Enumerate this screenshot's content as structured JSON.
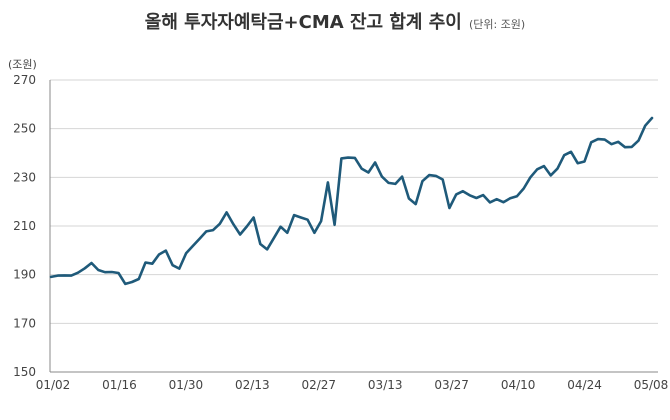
{
  "chart_data": {
    "type": "line",
    "title": "올해 투자자예탁금+CMA 잔고 합계 추이",
    "subtitle": "(단위: 조원)",
    "ylabel": "(조원)",
    "ylim": [
      150,
      270
    ],
    "yticks": [
      150,
      170,
      190,
      210,
      230,
      250,
      270
    ],
    "grid": true,
    "legend": "none",
    "line_color": "#1f5a7a",
    "x_tick_labels": [
      "01/02",
      "01/16",
      "01/30",
      "02/13",
      "02/27",
      "03/13",
      "03/27",
      "04/10",
      "04/24",
      "05/08"
    ],
    "series": [
      {
        "values": [
          189.1,
          189.6,
          189.7,
          189.6,
          190.8,
          192.6,
          194.8,
          191.9,
          191.0,
          191.1,
          190.7,
          186.2,
          187.0,
          188.2,
          195.0,
          194.5,
          198.3,
          199.9,
          193.9,
          192.5,
          198.8,
          201.8,
          204.8,
          207.8,
          208.3,
          210.9,
          215.6,
          210.8,
          206.5,
          209.8,
          213.5,
          202.6,
          200.4,
          205.0,
          209.7,
          207.2,
          214.5,
          213.5,
          212.6,
          207.2,
          212.0,
          227.9,
          210.5,
          237.8,
          238.1,
          238.0,
          233.6,
          232.0,
          236.1,
          230.3,
          227.7,
          227.3,
          230.3,
          221.3,
          219.0,
          228.4,
          230.9,
          230.6,
          229.1,
          217.4,
          223.0,
          224.3,
          222.6,
          221.5,
          222.7,
          219.7,
          221.0,
          219.8,
          221.4,
          222.2,
          225.4,
          230.0,
          233.3,
          234.6,
          230.8,
          233.6,
          239.1,
          240.5,
          235.8,
          236.5,
          244.4,
          245.7,
          245.5,
          243.6,
          244.6,
          242.4,
          242.5,
          245.1,
          251.2,
          254.4
        ]
      }
    ]
  }
}
